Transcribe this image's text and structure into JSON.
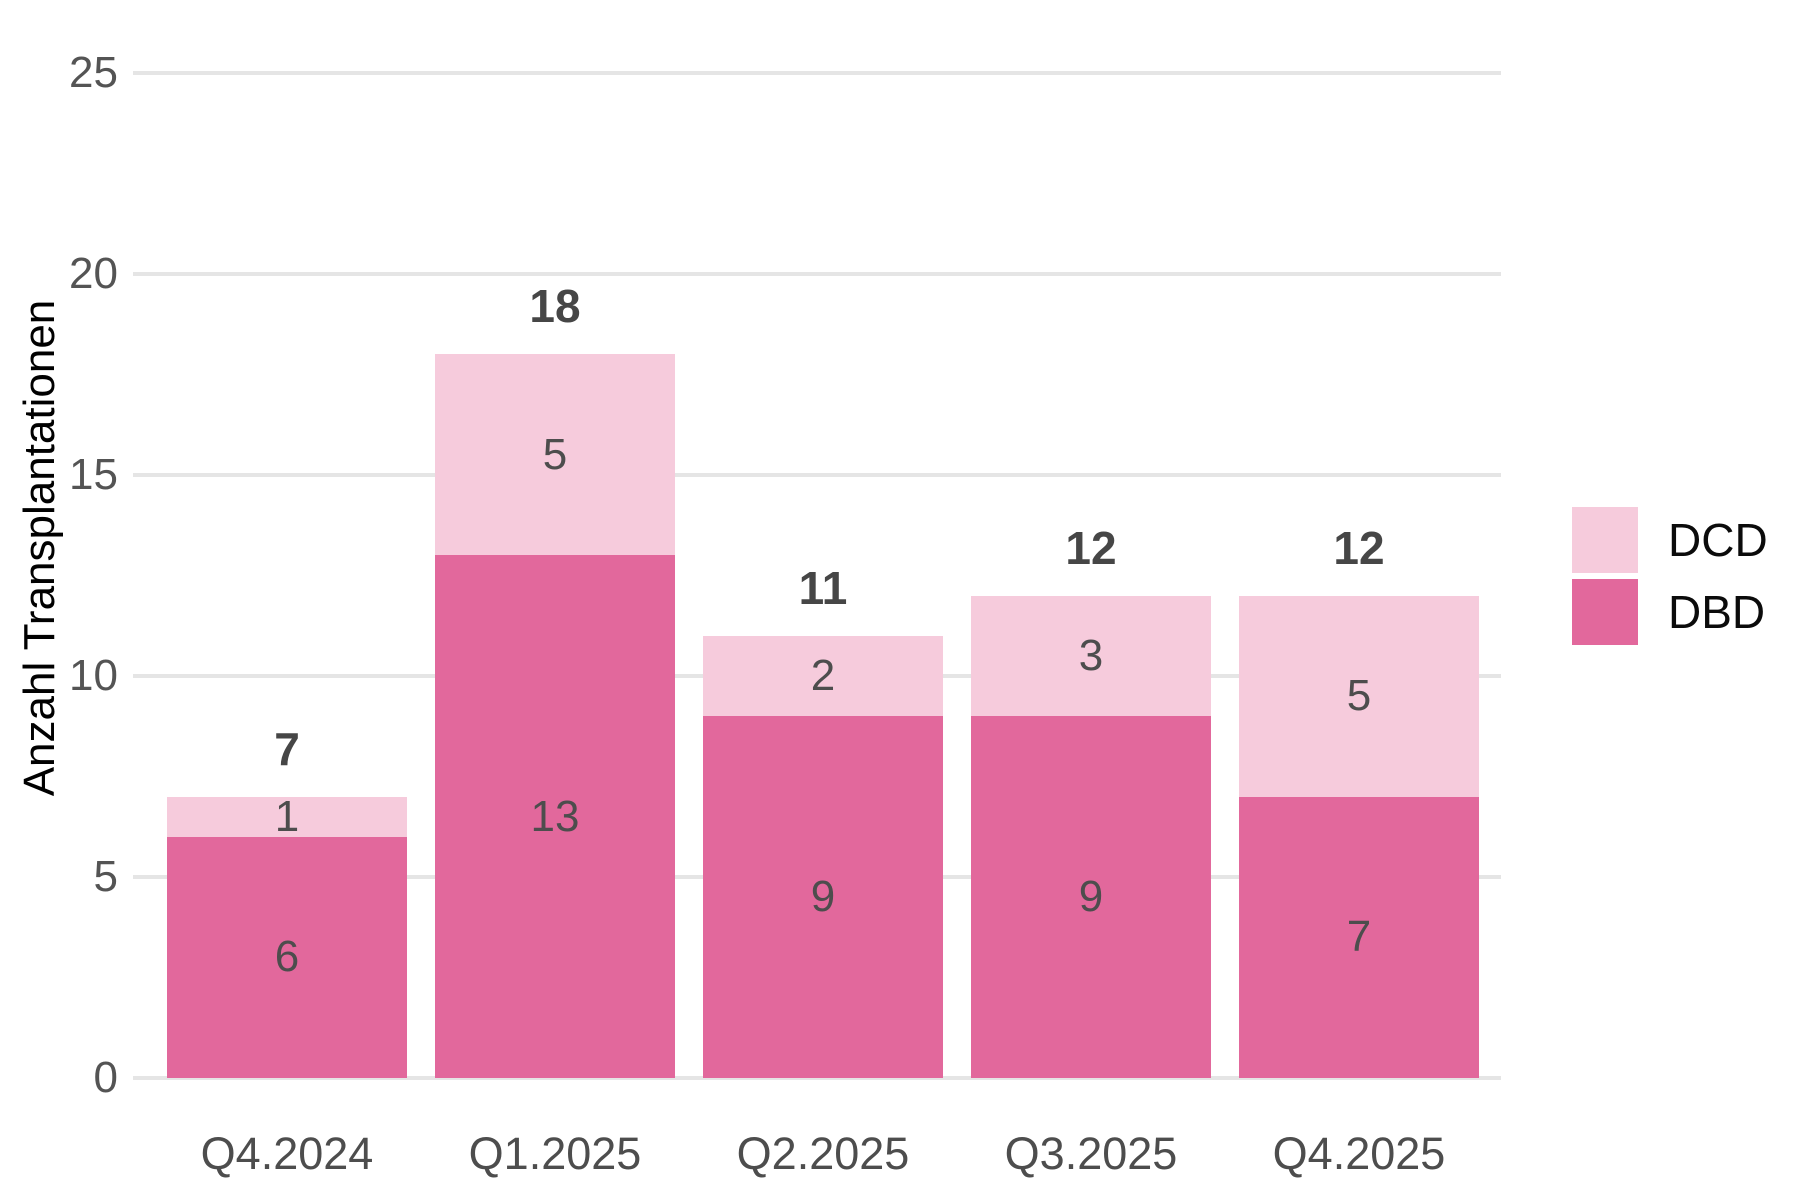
{
  "chart_data": {
    "type": "bar",
    "stacked": true,
    "title": "",
    "xlabel": "",
    "y_axis_title": "Anzahl Transplantationen",
    "categories": [
      "Q4.2024",
      "Q1.2025",
      "Q2.2025",
      "Q3.2025",
      "Q4.2025"
    ],
    "series": [
      {
        "name": "DBD",
        "color": "#E2689C",
        "values": [
          6,
          13,
          9,
          9,
          7
        ]
      },
      {
        "name": "DCD",
        "color": "#F6CBDC",
        "values": [
          1,
          5,
          2,
          3,
          5
        ]
      }
    ],
    "totals": [
      7,
      18,
      11,
      12,
      12
    ],
    "y_ticks": [
      0,
      5,
      10,
      15,
      20,
      25
    ],
    "ylim": [
      0,
      25
    ],
    "grid": "horizontal",
    "gridline_color": "#E5E5E5",
    "text_color": "#4D4D4D",
    "legend_position": "right",
    "legend_order": [
      "DCD",
      "DBD"
    ]
  }
}
